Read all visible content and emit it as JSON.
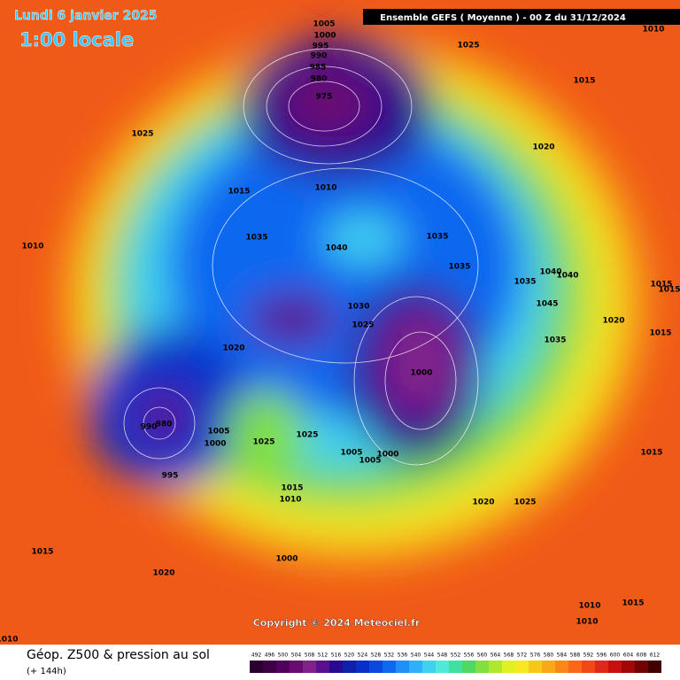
{
  "header": {
    "date": "Lundi 6 janvier 2025",
    "time": "1:00 locale",
    "run": "Ensemble GEFS  ( Moyenne )  -  00 Z du 31/12/2024"
  },
  "copyright": "Copyright © 2024 Meteociel.fr",
  "legend": {
    "title": "Géop. Z500 & pression au sol",
    "subtitle": "(+ 144h)",
    "values": [
      492,
      496,
      500,
      504,
      508,
      512,
      516,
      520,
      524,
      528,
      532,
      536,
      540,
      544,
      548,
      552,
      556,
      560,
      564,
      568,
      572,
      576,
      580,
      584,
      588,
      592,
      596,
      600,
      604,
      608,
      612
    ],
    "colors": [
      "#2a0030",
      "#3d0045",
      "#52005a",
      "#6a0a73",
      "#82208c",
      "#5a0f8f",
      "#2a0a8f",
      "#1020a8",
      "#0830c8",
      "#0a48e0",
      "#1068f0",
      "#2090f8",
      "#30b0f8",
      "#40d0f0",
      "#50e8d8",
      "#40e0a0",
      "#50d860",
      "#80e040",
      "#b0e830",
      "#e0f020",
      "#f8e820",
      "#f8c818",
      "#f8a818",
      "#f88818",
      "#f86818",
      "#f04818",
      "#e02818",
      "#c81010",
      "#a00808",
      "#700404",
      "#400000"
    ]
  },
  "isobar_labels": [
    1005,
    1000,
    995,
    990,
    985,
    980,
    975,
    1025,
    1010,
    1015,
    1025,
    1020,
    1015,
    1010,
    1010,
    1035,
    1040,
    1035,
    1035,
    1035,
    1040,
    1040,
    1015,
    1015,
    1030,
    1045,
    1020,
    1025,
    1035,
    1015,
    1020,
    1000,
    990,
    980,
    1005,
    1000,
    1025,
    1025,
    1005,
    1005,
    1000,
    995,
    1015,
    1015,
    1010,
    1020,
    1025,
    1015,
    1000,
    1020,
    1010,
    1015,
    1010,
    1010
  ]
}
